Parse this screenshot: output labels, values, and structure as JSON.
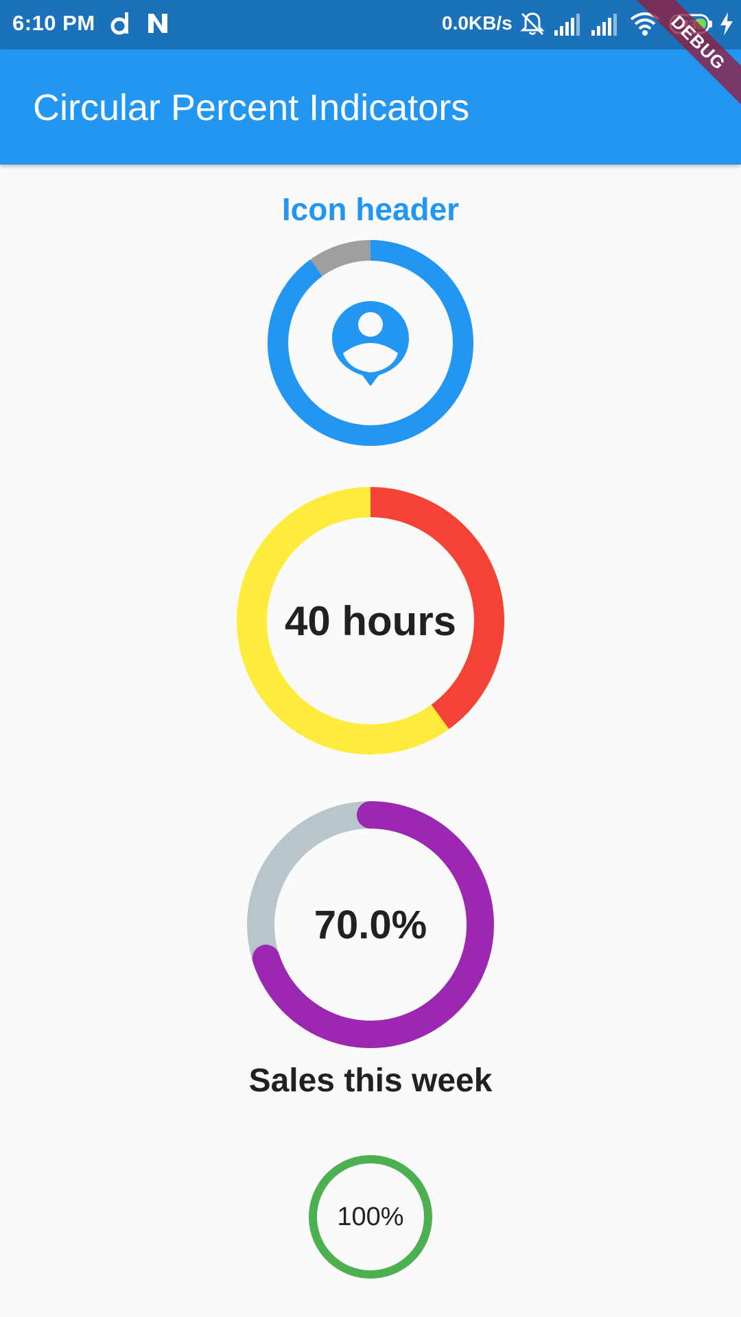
{
  "status_bar": {
    "time": "6:10 PM",
    "network_speed": "0.0KB/s",
    "battery_level": "43",
    "icons": [
      "d-app-icon",
      "n-app-icon",
      "mute-icon",
      "signal-icon",
      "signal-icon",
      "wifi-icon",
      "battery-icon",
      "charging-icon"
    ]
  },
  "debug_banner": "DEBUG",
  "app_bar": {
    "title": "Circular Percent Indicators"
  },
  "indicators": {
    "icon_indicator": {
      "header": "Icon header",
      "percent": 0.9,
      "progress_color": "#2196f3",
      "background_color": "#9e9e9e",
      "center_icon": "person-pin-icon"
    },
    "hours_indicator": {
      "center_text": "40 hours",
      "percent": 0.4,
      "progress_color": "#f44336",
      "background_color": "#ffeb3b"
    },
    "sales_indicator": {
      "center_text": "70.0%",
      "footer": "Sales this week",
      "percent": 0.7,
      "progress_color": "#9c27b0",
      "background_color": "#b8c6cc"
    },
    "complete_indicator": {
      "center_text": "100%",
      "percent": 1.0,
      "progress_color": "#4caf50",
      "background_color": "#e0e0e0"
    }
  }
}
